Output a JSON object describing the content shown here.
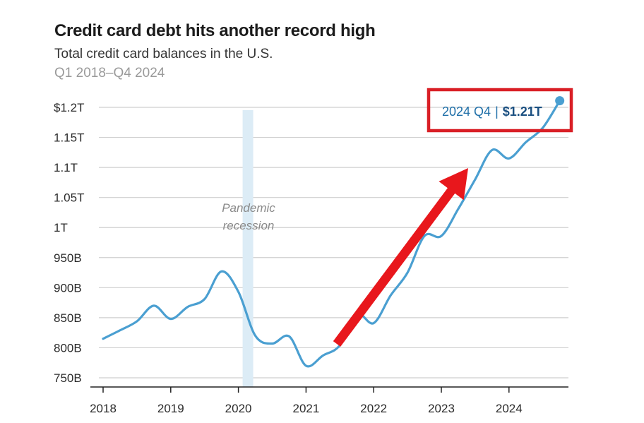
{
  "header": {
    "title": "Credit card debt hits another record high",
    "subtitle": "Total credit card balances in the U.S.",
    "period": "Q1 2018–Q4 2024"
  },
  "colors": {
    "line": "#4a9fd1",
    "grid": "#cfcfcf",
    "shade": "#dcecf6",
    "arrow": "#e8171c",
    "callout_border": "#d91f26"
  },
  "chart_data": {
    "type": "line",
    "title": "Credit card debt hits another record high",
    "subtitle": "Total credit card balances in the U.S.",
    "x_tick_labels": [
      "2018",
      "2019",
      "2020",
      "2021",
      "2022",
      "2023",
      "2024"
    ],
    "y_tick_labels": [
      "750B",
      "800B",
      "850B",
      "900B",
      "950B",
      "1T",
      "1.05T",
      "1.1T",
      "1.15T",
      "$1.2T"
    ],
    "y_tick_values": [
      750,
      800,
      850,
      900,
      950,
      1000,
      1050,
      1100,
      1150,
      1200
    ],
    "ylim": [
      750,
      1210
    ],
    "y_unit": "billions of dollars",
    "grid": "horizontal",
    "legend": "none",
    "series": [
      {
        "quarters": [
          "2018 Q1",
          "2018 Q2",
          "2018 Q3",
          "2018 Q4",
          "2019 Q1",
          "2019 Q2",
          "2019 Q3",
          "2019 Q4",
          "2020 Q1",
          "2020 Q2",
          "2020 Q3",
          "2020 Q4",
          "2021 Q1",
          "2021 Q2",
          "2021 Q3",
          "2021 Q4",
          "2022 Q1",
          "2022 Q2",
          "2022 Q3",
          "2022 Q4",
          "2023 Q1",
          "2023 Q2",
          "2023 Q3",
          "2023 Q4",
          "2024 Q1",
          "2024 Q2",
          "2024 Q3",
          "2024 Q4"
        ],
        "values": [
          815,
          829,
          844,
          870,
          848,
          868,
          881,
          927,
          893,
          820,
          807,
          819,
          770,
          787,
          804,
          856,
          841,
          887,
          925,
          986,
          986,
          1031,
          1080,
          1129,
          1115,
          1142,
          1166,
          1211
        ]
      }
    ],
    "annotations": [
      {
        "label": "Pandemic recession",
        "type": "shaded-band",
        "x_start": "2020 Q1",
        "x_end": "2020 Q2"
      }
    ],
    "callout": {
      "period": "2024 Q4",
      "separator": "|",
      "value": "$1.21T"
    }
  },
  "shade_label": {
    "line1": "Pandemic",
    "line2": "recession"
  }
}
